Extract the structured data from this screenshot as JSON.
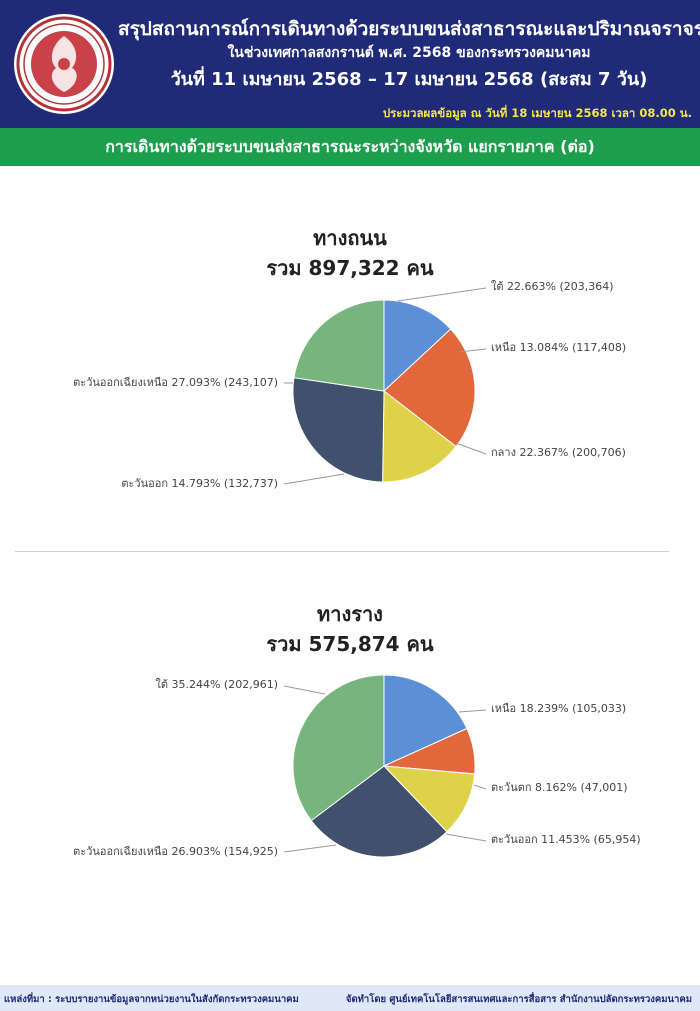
{
  "header": {
    "title": "สรุปสถานการณ์การเดินทางด้วยระบบขนส่งสาธารณะและปริมาณจราจร",
    "subtitle": "ในช่วงเทศกาลสงกรานต์ พ.ศ. 2568 ของกระทรวงคมนาคม",
    "date_range": "วันที่ 11 เมษายน 2568 – 17 เมษายน 2568 (สะสม 7 วัน)",
    "as_of": "ประมวลผลข้อมูล ณ วันที่  18 เมษายน 2568 เวลา 08.00 น.",
    "logo_icon": "ministry-emblem-icon"
  },
  "section_title": "การเดินทางด้วยระบบขนส่งสาธารณะระหว่างจังหวัด แยกรายภาค (ต่อ)",
  "chart_data": [
    {
      "type": "pie",
      "title": "ทางถนน",
      "subtitle": "รวม 897,322 คน",
      "slices": [
        {
          "label": "เหนือ",
          "percent": 13.084,
          "value": 117408,
          "color": "#5b8fd6"
        },
        {
          "label": "กลาง",
          "percent": 22.367,
          "value": 200706,
          "color": "#e2673a"
        },
        {
          "label": "ตะวันออก",
          "percent": 14.793,
          "value": 132737,
          "color": "#dfd24b"
        },
        {
          "label": "ตะวันออกเฉียงเหนือ",
          "percent": 27.093,
          "value": 243107,
          "color": "#3f516c"
        },
        {
          "label": "ใต้",
          "percent": 22.663,
          "value": 203364,
          "color": "#78b57e"
        }
      ],
      "slice_labels": [
        "เหนือ 13.084% (117,408)",
        "กลาง 22.367% (200,706)",
        "ตะวันออก 14.793% (132,737)",
        "ตะวันออกเฉียงเหนือ 27.093% (243,107)",
        "ใต้ 22.663% (203,364)"
      ]
    },
    {
      "type": "pie",
      "title": "ทางราง",
      "subtitle": "รวม 575,874 คน",
      "slices": [
        {
          "label": "เหนือ",
          "percent": 18.239,
          "value": 105033,
          "color": "#5b8fd6"
        },
        {
          "label": "ตะวันตก",
          "percent": 8.162,
          "value": 47001,
          "color": "#e2673a"
        },
        {
          "label": "ตะวันออก",
          "percent": 11.453,
          "value": 65954,
          "color": "#dfd24b"
        },
        {
          "label": "ตะวันออกเฉียงเหนือ",
          "percent": 26.903,
          "value": 154925,
          "color": "#3f516c"
        },
        {
          "label": "ใต้",
          "percent": 35.244,
          "value": 202961,
          "color": "#78b57e"
        }
      ],
      "slice_labels": [
        "เหนือ 18.239% (105,033)",
        "ตะวันตก 8.162% (47,001)",
        "ตะวันออก 11.453% (65,954)",
        "ตะวันออกเฉียงเหนือ 26.903% (154,925)",
        "ใต้ 35.244% (202,961)"
      ]
    }
  ],
  "footer": {
    "source": "แหล่งที่มา : ระบบรายงานข้อมูลจากหน่วยงานในสังกัดกระทรวงคมนาคม",
    "credit": "จัดทำโดย ศูนย์เทคโนโลยีสารสนเทศและการสื่อสาร สำนักงานปลัดกระทรวงคมนาคม"
  }
}
